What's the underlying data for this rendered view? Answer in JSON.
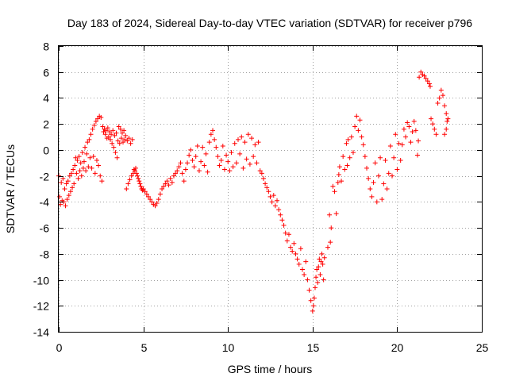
{
  "chart_data": {
    "type": "scatter",
    "title": "Day 183 of 2024, Sidereal Day-to-day VTEC variation (SDTVAR) for receiver p796",
    "xlabel": "GPS time / hours",
    "ylabel": "SDTVAR / TECUs",
    "xlim": [
      0,
      25
    ],
    "ylim": [
      -14,
      8
    ],
    "xticks": [
      "0",
      "5",
      "10",
      "15",
      "20",
      "25"
    ],
    "yticks": [
      "-14",
      "-12",
      "-10",
      "-8",
      "-6",
      "-4",
      "-2",
      "0",
      "2",
      "4",
      "6",
      "8"
    ],
    "grid": true,
    "marker": "plus",
    "color": "#ff0000",
    "series": [
      {
        "points": [
          [
            0.0,
            -2.0
          ],
          [
            0.05,
            -3.6
          ],
          [
            0.1,
            -4.2
          ],
          [
            0.15,
            -2.5
          ],
          [
            0.2,
            -3.9
          ],
          [
            0.25,
            -2.2
          ],
          [
            0.3,
            -4.0
          ],
          [
            0.35,
            -3.0
          ],
          [
            0.4,
            -4.3
          ],
          [
            0.45,
            -2.6
          ],
          [
            0.5,
            -3.8
          ],
          [
            0.55,
            -2.4
          ],
          [
            0.6,
            -3.5
          ],
          [
            0.65,
            -2.0
          ],
          [
            0.7,
            -3.2
          ],
          [
            0.75,
            -1.8
          ],
          [
            0.8,
            -2.9
          ],
          [
            0.85,
            -1.5
          ],
          [
            0.9,
            -2.6
          ],
          [
            0.95,
            -1.2
          ],
          [
            1.0,
            -0.6
          ],
          [
            1.05,
            -1.8
          ],
          [
            1.1,
            -0.8
          ],
          [
            1.15,
            -2.2
          ],
          [
            1.2,
            -0.5
          ],
          [
            1.25,
            -1.6
          ],
          [
            1.3,
            -1.0
          ],
          [
            1.35,
            -2.0
          ],
          [
            1.4,
            -0.2
          ],
          [
            1.45,
            -1.4
          ],
          [
            1.5,
            -0.9
          ],
          [
            1.55,
            0.2
          ],
          [
            1.6,
            -1.6
          ],
          [
            1.65,
            -0.3
          ],
          [
            1.7,
            0.6
          ],
          [
            1.75,
            -1.3
          ],
          [
            1.8,
            0.8
          ],
          [
            1.85,
            -0.6
          ],
          [
            1.9,
            1.2
          ],
          [
            1.95,
            -1.4
          ],
          [
            2.0,
            1.6
          ],
          [
            2.05,
            -0.5
          ],
          [
            2.1,
            1.9
          ],
          [
            2.15,
            -1.8
          ],
          [
            2.2,
            2.2
          ],
          [
            2.25,
            -0.8
          ],
          [
            2.3,
            2.4
          ],
          [
            2.35,
            -1.2
          ],
          [
            2.4,
            2.6
          ],
          [
            2.45,
            -2.0
          ],
          [
            2.5,
            2.5
          ],
          [
            2.55,
            -2.4
          ],
          [
            2.6,
            1.8
          ],
          [
            2.65,
            1.4
          ],
          [
            2.7,
            1.6
          ],
          [
            2.75,
            1.2
          ],
          [
            2.8,
            1.5
          ],
          [
            2.85,
            0.9
          ],
          [
            2.9,
            1.7
          ],
          [
            2.95,
            1.0
          ],
          [
            3.0,
            1.4
          ],
          [
            3.05,
            0.8
          ],
          [
            3.1,
            1.2
          ],
          [
            3.15,
            0.5
          ],
          [
            3.2,
            1.5
          ],
          [
            3.25,
            0.2
          ],
          [
            3.3,
            1.1
          ],
          [
            3.35,
            -0.2
          ],
          [
            3.4,
            1.3
          ],
          [
            3.45,
            -0.6
          ],
          [
            3.5,
            0.7
          ],
          [
            3.55,
            1.8
          ],
          [
            3.6,
            0.5
          ],
          [
            3.65,
            1.6
          ],
          [
            3.7,
            0.9
          ],
          [
            3.75,
            1.3
          ],
          [
            3.8,
            0.6
          ],
          [
            3.85,
            1.5
          ],
          [
            3.9,
            0.8
          ],
          [
            3.95,
            1.1
          ],
          [
            4.0,
            -3.0
          ],
          [
            4.05,
            0.7
          ],
          [
            4.1,
            -2.6
          ],
          [
            4.15,
            0.9
          ],
          [
            4.2,
            -2.3
          ],
          [
            4.25,
            0.5
          ],
          [
            4.3,
            -2.0
          ],
          [
            4.35,
            0.8
          ],
          [
            4.4,
            -1.8
          ],
          [
            4.45,
            -1.5
          ],
          [
            4.5,
            -1.6
          ],
          [
            4.55,
            -1.4
          ],
          [
            4.6,
            -1.8
          ],
          [
            4.65,
            -2.0
          ],
          [
            4.7,
            -2.2
          ],
          [
            4.75,
            -2.4
          ],
          [
            4.8,
            -2.6
          ],
          [
            4.85,
            -2.8
          ],
          [
            4.9,
            -3.0
          ],
          [
            4.95,
            -3.1
          ],
          [
            5.0,
            -3.0
          ],
          [
            5.1,
            -3.2
          ],
          [
            5.2,
            -3.4
          ],
          [
            5.3,
            -3.6
          ],
          [
            5.4,
            -3.8
          ],
          [
            5.5,
            -4.0
          ],
          [
            5.6,
            -4.2
          ],
          [
            5.7,
            -4.3
          ],
          [
            5.8,
            -4.1
          ],
          [
            5.9,
            -3.8
          ],
          [
            6.0,
            -3.4
          ],
          [
            6.1,
            -3.0
          ],
          [
            6.2,
            -2.8
          ],
          [
            6.3,
            -2.6
          ],
          [
            6.4,
            -2.4
          ],
          [
            6.5,
            -2.7
          ],
          [
            6.6,
            -2.2
          ],
          [
            6.7,
            -2.5
          ],
          [
            6.8,
            -2.0
          ],
          [
            6.9,
            -1.8
          ],
          [
            7.0,
            -1.6
          ],
          [
            7.1,
            -1.3
          ],
          [
            7.2,
            -1.0
          ],
          [
            7.3,
            -1.8
          ],
          [
            7.4,
            -2.4
          ],
          [
            7.5,
            -1.5
          ],
          [
            7.6,
            -1.0
          ],
          [
            7.7,
            -0.4
          ],
          [
            7.8,
            0.0
          ],
          [
            7.9,
            -0.8
          ],
          [
            8.0,
            -1.3
          ],
          [
            8.1,
            -0.5
          ],
          [
            8.2,
            0.3
          ],
          [
            8.3,
            -1.6
          ],
          [
            8.4,
            -0.9
          ],
          [
            8.5,
            0.2
          ],
          [
            8.6,
            -1.2
          ],
          [
            8.7,
            -0.3
          ],
          [
            8.8,
            -1.7
          ],
          [
            8.9,
            0.6
          ],
          [
            9.0,
            1.2
          ],
          [
            9.1,
            1.5
          ],
          [
            9.2,
            0.8
          ],
          [
            9.3,
            0.2
          ],
          [
            9.4,
            -0.5
          ],
          [
            9.5,
            -1.2
          ],
          [
            9.6,
            -0.8
          ],
          [
            9.7,
            0.3
          ],
          [
            9.8,
            -1.5
          ],
          [
            9.9,
            -0.4
          ],
          [
            10.0,
            -0.9
          ],
          [
            10.1,
            -1.6
          ],
          [
            10.2,
            -0.2
          ],
          [
            10.3,
            -1.3
          ],
          [
            10.4,
            0.5
          ],
          [
            10.5,
            -1.0
          ],
          [
            10.6,
            0.8
          ],
          [
            10.7,
            -0.3
          ],
          [
            10.8,
            1.0
          ],
          [
            10.9,
            -1.4
          ],
          [
            11.0,
            0.6
          ],
          [
            11.1,
            -0.7
          ],
          [
            11.2,
            1.2
          ],
          [
            11.3,
            -1.1
          ],
          [
            11.4,
            0.9
          ],
          [
            11.5,
            -0.5
          ],
          [
            11.6,
            0.4
          ],
          [
            11.7,
            -1.0
          ],
          [
            11.8,
            0.6
          ],
          [
            11.9,
            -1.6
          ],
          [
            12.0,
            -1.8
          ],
          [
            12.1,
            -2.2
          ],
          [
            12.2,
            -2.6
          ],
          [
            12.3,
            -2.9
          ],
          [
            12.4,
            -3.2
          ],
          [
            12.5,
            -3.6
          ],
          [
            12.6,
            -4.0
          ],
          [
            12.7,
            -3.5
          ],
          [
            12.8,
            -4.3
          ],
          [
            12.9,
            -3.9
          ],
          [
            13.0,
            -4.6
          ],
          [
            13.1,
            -5.0
          ],
          [
            13.2,
            -5.4
          ],
          [
            13.3,
            -5.8
          ],
          [
            13.4,
            -6.4
          ],
          [
            13.5,
            -7.0
          ],
          [
            13.6,
            -6.5
          ],
          [
            13.7,
            -7.5
          ],
          [
            13.8,
            -7.8
          ],
          [
            13.9,
            -7.2
          ],
          [
            14.0,
            -8.0
          ],
          [
            14.1,
            -8.4
          ],
          [
            14.2,
            -8.8
          ],
          [
            14.3,
            -7.6
          ],
          [
            14.4,
            -9.2
          ],
          [
            14.5,
            -9.6
          ],
          [
            14.6,
            -8.6
          ],
          [
            14.7,
            -10.0
          ],
          [
            14.8,
            -10.8
          ],
          [
            14.9,
            -11.6
          ],
          [
            15.0,
            -12.4
          ],
          [
            15.05,
            -12.0
          ],
          [
            15.1,
            -11.4
          ],
          [
            15.15,
            -10.6
          ],
          [
            15.2,
            -9.8
          ],
          [
            15.25,
            -9.2
          ],
          [
            15.3,
            -10.2
          ],
          [
            15.35,
            -9.0
          ],
          [
            15.4,
            -8.4
          ],
          [
            15.45,
            -9.6
          ],
          [
            15.5,
            -8.6
          ],
          [
            15.55,
            -8.0
          ],
          [
            15.6,
            -8.8
          ],
          [
            15.65,
            -10.0
          ],
          [
            15.7,
            -8.3
          ],
          [
            15.9,
            -7.5
          ],
          [
            16.0,
            -5.0
          ],
          [
            16.05,
            -7.1
          ],
          [
            16.1,
            -6.0
          ],
          [
            16.2,
            -2.8
          ],
          [
            16.3,
            -3.2
          ],
          [
            16.4,
            -4.9
          ],
          [
            16.5,
            -2.5
          ],
          [
            16.55,
            -1.9
          ],
          [
            16.6,
            -1.3
          ],
          [
            16.7,
            -2.4
          ],
          [
            16.8,
            -0.5
          ],
          [
            16.9,
            -1.5
          ],
          [
            17.0,
            0.5
          ],
          [
            17.05,
            -1.2
          ],
          [
            17.1,
            0.8
          ],
          [
            17.2,
            -0.6
          ],
          [
            17.3,
            1.0
          ],
          [
            17.4,
            -0.2
          ],
          [
            17.5,
            1.8
          ],
          [
            17.6,
            2.6
          ],
          [
            17.7,
            1.5
          ],
          [
            17.8,
            2.3
          ],
          [
            17.9,
            1.0
          ],
          [
            18.0,
            0.4
          ],
          [
            18.1,
            -0.5
          ],
          [
            18.2,
            -1.4
          ],
          [
            18.3,
            -2.2
          ],
          [
            18.4,
            -3.0
          ],
          [
            18.5,
            -3.6
          ],
          [
            18.6,
            -2.5
          ],
          [
            18.7,
            -1.0
          ],
          [
            18.8,
            -4.0
          ],
          [
            18.9,
            -2.0
          ],
          [
            19.0,
            -0.6
          ],
          [
            19.1,
            -3.8
          ],
          [
            19.2,
            -2.6
          ],
          [
            19.3,
            -0.8
          ],
          [
            19.4,
            -3.0
          ],
          [
            19.5,
            -1.8
          ],
          [
            19.6,
            0.3
          ],
          [
            19.7,
            -2.0
          ],
          [
            19.8,
            -0.6
          ],
          [
            19.9,
            1.2
          ],
          [
            20.0,
            -1.5
          ],
          [
            20.1,
            0.5
          ],
          [
            20.2,
            -0.8
          ],
          [
            20.3,
            0.4
          ],
          [
            20.4,
            1.6
          ],
          [
            20.5,
            1.0
          ],
          [
            20.6,
            2.1
          ],
          [
            20.7,
            1.8
          ],
          [
            20.8,
            0.6
          ],
          [
            20.9,
            1.4
          ],
          [
            21.0,
            2.2
          ],
          [
            21.1,
            1.5
          ],
          [
            21.2,
            -0.4
          ],
          [
            21.25,
            0.7
          ],
          [
            21.3,
            5.6
          ],
          [
            21.4,
            6.0
          ],
          [
            21.5,
            5.8
          ],
          [
            21.6,
            5.7
          ],
          [
            21.7,
            5.5
          ],
          [
            21.8,
            5.3
          ],
          [
            21.9,
            5.1
          ],
          [
            21.95,
            4.9
          ],
          [
            22.0,
            2.4
          ],
          [
            22.1,
            2.0
          ],
          [
            22.2,
            1.6
          ],
          [
            22.3,
            1.2
          ],
          [
            22.4,
            3.6
          ],
          [
            22.5,
            4.0
          ],
          [
            22.6,
            4.6
          ],
          [
            22.7,
            4.2
          ],
          [
            22.8,
            3.4
          ],
          [
            22.9,
            2.8
          ],
          [
            22.95,
            2.2
          ],
          [
            23.0,
            2.4
          ],
          [
            22.9,
            1.6
          ],
          [
            22.8,
            1.2
          ]
        ]
      }
    ]
  }
}
